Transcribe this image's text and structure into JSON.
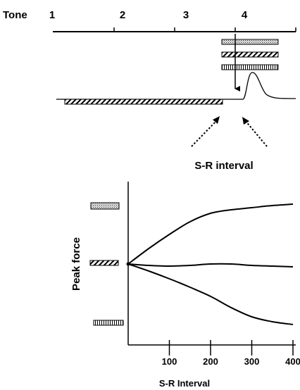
{
  "timeline": {
    "label": "Tone",
    "tone_numbers": [
      "1",
      "2",
      "3",
      "4"
    ]
  },
  "stimulus_panel": {
    "interval_label": "S-R interval"
  },
  "graph": {
    "ylabel": "Peak force",
    "xlabel": "S-R Interval",
    "x_ticks": [
      "100",
      "200",
      "300",
      "400"
    ]
  },
  "colors": {
    "ink": "#000000",
    "background": "#ffffff"
  },
  "chart_data": {
    "type": "line",
    "xlabel": "S-R Interval",
    "ylabel": "Peak force",
    "x_ticks": [
      100,
      200,
      300,
      400
    ],
    "series": [
      {
        "pattern": "stippled",
        "x": [
          0,
          50,
          100,
          150,
          200,
          250,
          300,
          350,
          400
        ],
        "y": [
          0,
          0.22,
          0.42,
          0.6,
          0.72,
          0.77,
          0.8,
          0.83,
          0.85
        ]
      },
      {
        "pattern": "diagonal",
        "x": [
          0,
          50,
          100,
          150,
          200,
          250,
          300,
          350,
          400
        ],
        "y": [
          0,
          -0.02,
          -0.03,
          -0.02,
          0.0,
          0.0,
          -0.02,
          -0.03,
          -0.04
        ]
      },
      {
        "pattern": "vertical",
        "x": [
          0,
          50,
          100,
          150,
          200,
          250,
          300,
          350,
          400
        ],
        "y": [
          0,
          -0.1,
          -0.21,
          -0.33,
          -0.46,
          -0.62,
          -0.75,
          -0.82,
          -0.86
        ]
      }
    ]
  }
}
